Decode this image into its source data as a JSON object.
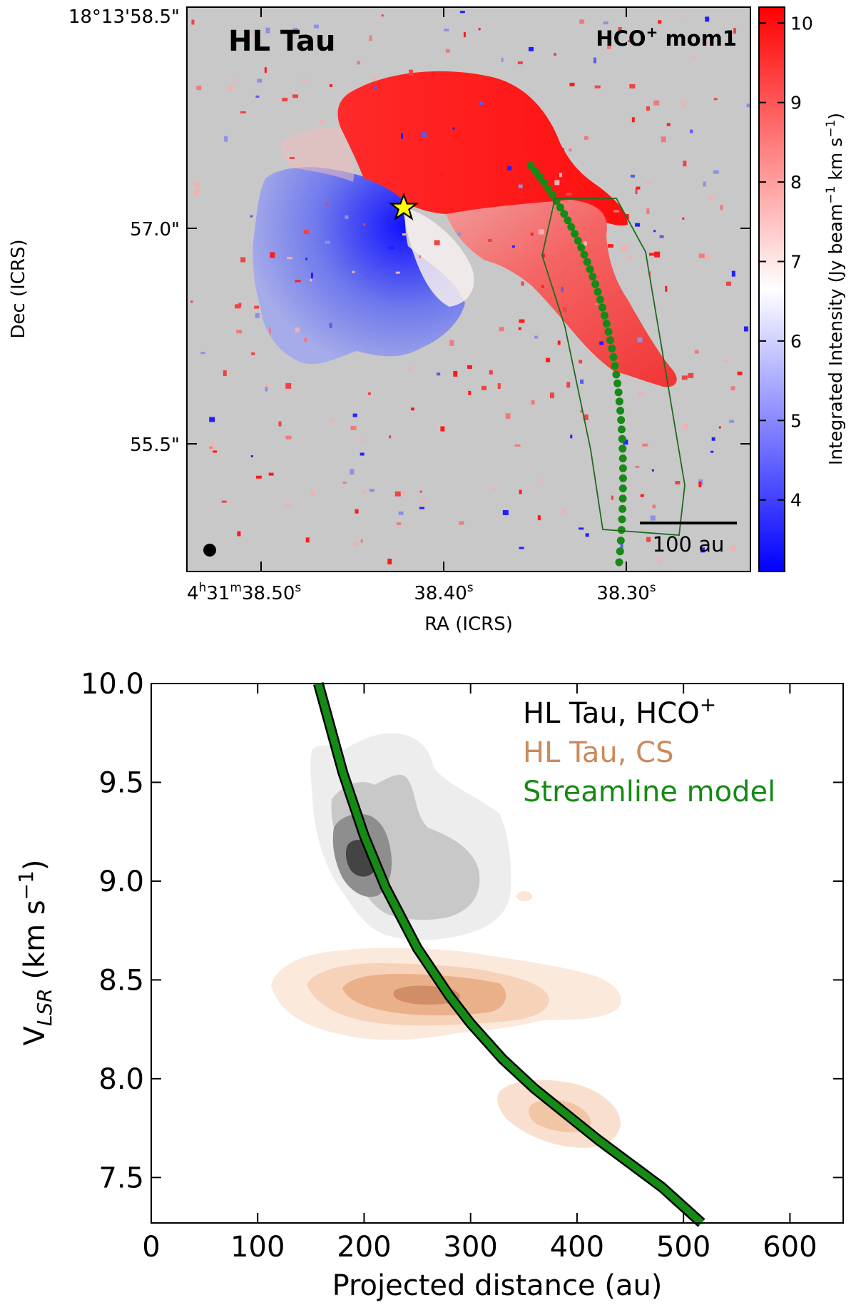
{
  "chart_data": [
    {
      "type": "heatmap",
      "title": "HL Tau",
      "annotation": {
        "base": "HCO",
        "sup": "+",
        "rest": "mom1"
      },
      "xlabel": "RA (ICRS)",
      "ylabel": "Dec (ICRS)",
      "x_ticks": [
        {
          "pre": "4",
          "s1": "h",
          "mid": "31",
          "s2": "m",
          "post": "38.50",
          "s3": "s"
        },
        {
          "pre": "",
          "s1": "",
          "mid": "",
          "s2": "",
          "post": "38.40",
          "s3": "s"
        },
        {
          "pre": "",
          "s1": "",
          "mid": "",
          "s2": "",
          "post": "38.30",
          "s3": "s"
        }
      ],
      "y_ticks": [
        "18°13'58.5\"",
        "57.0\"",
        "55.5\""
      ],
      "colorbar": {
        "label": "Integrated Intensity (Jy beam",
        "label_sup1": "−1",
        "label_mid": " km s",
        "label_sup2": "−1",
        "label_end": ")",
        "ticks": [
          4,
          5,
          6,
          7,
          8,
          9,
          10
        ],
        "range": [
          3.1,
          10.2
        ],
        "low_color": "#0000ff",
        "mid_color": "#ffffff",
        "high_color": "#ff0000"
      },
      "background_color": "#c8c8c8",
      "scalebar_label": "100 au",
      "streamline_color": "#158a15",
      "polygon_color": "#1f6b1f",
      "star_color": "#ffff00"
    },
    {
      "type": "line",
      "xlabel": "Projected distance (au)",
      "ylabel": {
        "base": "V",
        "sub": "LSR",
        "rest": " (km s",
        "sup": "−1",
        "end": ")"
      },
      "xlim": [
        0,
        650
      ],
      "ylim": [
        7.27,
        10.0
      ],
      "x_ticks": [
        0,
        100,
        200,
        300,
        400,
        500,
        600
      ],
      "y_ticks": [
        7.5,
        8.0,
        8.5,
        9.0,
        9.5,
        10.0
      ],
      "legend": [
        {
          "label": "HL Tau, HCO",
          "sup": "+",
          "color": "#000000"
        },
        {
          "label": "HL Tau, CS",
          "sup": "",
          "color": "#cd8a5a"
        },
        {
          "label": "Streamline model",
          "sup": "",
          "color": "#158a15"
        }
      ],
      "streamline_model": {
        "color": "#158a15",
        "x": [
          157,
          180,
          200,
          220,
          250,
          280,
          300,
          330,
          360,
          390,
          420,
          450,
          480,
          517
        ],
        "y": [
          10.0,
          9.55,
          9.23,
          8.97,
          8.66,
          8.42,
          8.28,
          8.1,
          7.95,
          7.82,
          7.69,
          7.57,
          7.45,
          7.27
        ]
      }
    }
  ]
}
